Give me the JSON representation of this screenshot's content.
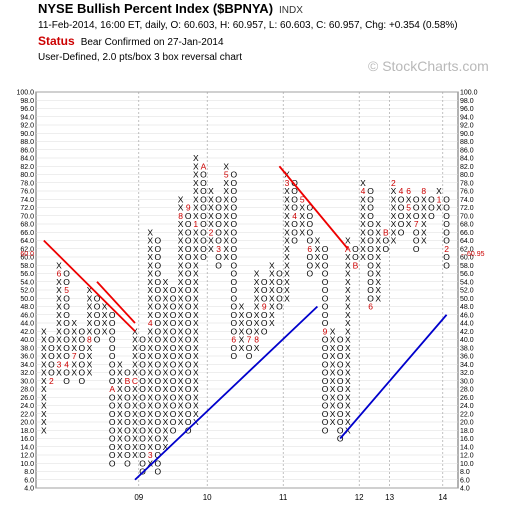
{
  "header": {
    "title": "NYSE Bullish Percent Index ($BPNYA)",
    "exchange": "INDX",
    "quote": "11-Feb-2014, 16:00 ET, daily, O: 60.603, H: 60.957, L: 60.603, C: 60.957, Chg: +0.354 (0.58%)",
    "status_label": "Status",
    "status_value": "Bear Confirmed on 27-Jan-2014",
    "chart_type": "User-Defined, 2.0 pts/box 3 box reversal chart",
    "brand": "© StockCharts.com"
  },
  "colors": {
    "x_mark": "#000000",
    "o_mark": "#000000",
    "month_marker": "#cc0000",
    "bearish_resistance": "#ee0000",
    "bullish_support": "#0000cc",
    "price_label": "#cc0000",
    "grid": "#dddddd"
  },
  "chart_data": {
    "type": "point-and-figure",
    "box_size": 2.0,
    "reversal": 3,
    "ylim": [
      4,
      100
    ],
    "y_ticks": [
      "100.0",
      "98.0",
      "96.0",
      "94.0",
      "92.0",
      "90.0",
      "88.0",
      "86.0",
      "84.0",
      "82.0",
      "80.0",
      "78.0",
      "76.0",
      "74.0",
      "72.0",
      "70.0",
      "68.0",
      "66.0",
      "64.0",
      "62.0",
      "60.0",
      "58.0",
      "56.0",
      "54.0",
      "52.0",
      "50.0",
      "48.0",
      "46.0",
      "44.0",
      "42.0",
      "40.0",
      "38.0",
      "36.0",
      "34.0",
      "32.0",
      "30.0",
      "28.0",
      "26.0",
      "24.0",
      "22.0",
      "20.0",
      "18.0",
      "16.0",
      "14.0",
      "12.0",
      "10.0",
      "8.0",
      "6.0",
      "4.0"
    ],
    "x_labels": [
      {
        "label": "09",
        "column": 13
      },
      {
        "label": "10",
        "column": 22
      },
      {
        "label": "11",
        "column": 32
      },
      {
        "label": "12",
        "column": 42
      },
      {
        "label": "13",
        "column": 46
      },
      {
        "label": "14",
        "column": 53
      }
    ],
    "current_price": 60.95,
    "current_price_label": "60.95",
    "current_price_label_left": "60.0",
    "columns": [
      {
        "type": "X",
        "low": 18,
        "high": 42
      },
      {
        "type": "O",
        "low": 30,
        "high": 40
      },
      {
        "type": "X",
        "low": 32,
        "high": 58
      },
      {
        "type": "O",
        "low": 30,
        "high": 56
      },
      {
        "type": "X",
        "low": 32,
        "high": 44
      },
      {
        "type": "O",
        "low": 30,
        "high": 42
      },
      {
        "type": "X",
        "low": 32,
        "high": 52
      },
      {
        "type": "O",
        "low": 40,
        "high": 50
      },
      {
        "type": "X",
        "low": 42,
        "high": 48
      },
      {
        "type": "O",
        "low": 10,
        "high": 46
      },
      {
        "type": "X",
        "low": 12,
        "high": 34
      },
      {
        "type": "O",
        "low": 10,
        "high": 32
      },
      {
        "type": "X",
        "low": 12,
        "high": 42
      },
      {
        "type": "O",
        "low": 8,
        "high": 40
      },
      {
        "type": "X",
        "low": 10,
        "high": 66
      },
      {
        "type": "O",
        "low": 8,
        "high": 64
      },
      {
        "type": "X",
        "low": 14,
        "high": 54
      },
      {
        "type": "O",
        "low": 18,
        "high": 52
      },
      {
        "type": "X",
        "low": 20,
        "high": 74
      },
      {
        "type": "O",
        "low": 18,
        "high": 72
      },
      {
        "type": "X",
        "low": 20,
        "high": 84
      },
      {
        "type": "O",
        "low": 60,
        "high": 82
      },
      {
        "type": "X",
        "low": 62,
        "high": 76
      },
      {
        "type": "O",
        "low": 58,
        "high": 74
      },
      {
        "type": "X",
        "low": 60,
        "high": 82
      },
      {
        "type": "O",
        "low": 36,
        "high": 80
      },
      {
        "type": "X",
        "low": 38,
        "high": 48
      },
      {
        "type": "O",
        "low": 36,
        "high": 46
      },
      {
        "type": "X",
        "low": 38,
        "high": 56
      },
      {
        "type": "O",
        "low": 42,
        "high": 54
      },
      {
        "type": "X",
        "low": 44,
        "high": 58
      },
      {
        "type": "O",
        "low": 48,
        "high": 56
      },
      {
        "type": "X",
        "low": 50,
        "high": 80
      },
      {
        "type": "O",
        "low": 64,
        "high": 78
      },
      {
        "type": "X",
        "low": 66,
        "high": 74
      },
      {
        "type": "O",
        "low": 56,
        "high": 72
      },
      {
        "type": "X",
        "low": 58,
        "high": 64
      },
      {
        "type": "O",
        "low": 18,
        "high": 62
      },
      {
        "type": "X",
        "low": 20,
        "high": 42
      },
      {
        "type": "O",
        "low": 16,
        "high": 40
      },
      {
        "type": "X",
        "low": 18,
        "high": 64
      },
      {
        "type": "O",
        "low": 58,
        "high": 62
      },
      {
        "type": "X",
        "low": 60,
        "high": 78
      },
      {
        "type": "O",
        "low": 48,
        "high": 76
      },
      {
        "type": "X",
        "low": 50,
        "high": 68
      },
      {
        "type": "O",
        "low": 62,
        "high": 66
      },
      {
        "type": "X",
        "low": 64,
        "high": 78
      },
      {
        "type": "O",
        "low": 66,
        "high": 76
      },
      {
        "type": "X",
        "low": 68,
        "high": 76
      },
      {
        "type": "O",
        "low": 62,
        "high": 74
      },
      {
        "type": "X",
        "low": 64,
        "high": 76
      },
      {
        "type": "O",
        "low": 70,
        "high": 74
      },
      {
        "type": "X",
        "low": 72,
        "high": 76
      },
      {
        "type": "O",
        "low": 58,
        "high": 74
      }
    ],
    "month_markers": [
      {
        "column": 1,
        "value": 30,
        "label": "2"
      },
      {
        "column": 2,
        "value": 34,
        "label": "3"
      },
      {
        "column": 2,
        "value": 56,
        "label": "6"
      },
      {
        "column": 3,
        "value": 34,
        "label": "4"
      },
      {
        "column": 3,
        "value": 52,
        "label": "5"
      },
      {
        "column": 4,
        "value": 36,
        "label": "7"
      },
      {
        "column": 6,
        "value": 40,
        "label": "8"
      },
      {
        "column": 9,
        "value": 28,
        "label": "A"
      },
      {
        "column": 11,
        "value": 30,
        "label": "B"
      },
      {
        "column": 12,
        "value": 30,
        "label": "C"
      },
      {
        "column": 13,
        "value": 44,
        "label": "2"
      },
      {
        "column": 14,
        "value": 12,
        "label": "3"
      },
      {
        "column": 14,
        "value": 44,
        "label": "4"
      },
      {
        "column": 16,
        "value": 70,
        "label": "6"
      },
      {
        "column": 17,
        "value": 54,
        "label": "7"
      },
      {
        "column": 17,
        "value": 64,
        "label": "5"
      },
      {
        "column": 18,
        "value": 70,
        "label": "8"
      },
      {
        "column": 19,
        "value": 72,
        "label": "9"
      },
      {
        "column": 20,
        "value": 68,
        "label": "1"
      },
      {
        "column": 21,
        "value": 82,
        "label": "A"
      },
      {
        "column": 22,
        "value": 66,
        "label": "2"
      },
      {
        "column": 23,
        "value": 62,
        "label": "3"
      },
      {
        "column": 23,
        "value": 80,
        "label": "4"
      },
      {
        "column": 24,
        "value": 80,
        "label": "5"
      },
      {
        "column": 25,
        "value": 40,
        "label": "6"
      },
      {
        "column": 27,
        "value": 40,
        "label": "7"
      },
      {
        "column": 28,
        "value": 40,
        "label": "8"
      },
      {
        "column": 29,
        "value": 48,
        "label": "9"
      },
      {
        "column": 30,
        "value": 62,
        "label": "A"
      },
      {
        "column": 31,
        "value": 72,
        "label": "B"
      },
      {
        "column": 31,
        "value": 76,
        "label": "C"
      },
      {
        "column": 32,
        "value": 78,
        "label": "3"
      },
      {
        "column": 33,
        "value": 70,
        "label": "4"
      },
      {
        "column": 34,
        "value": 74,
        "label": "5"
      },
      {
        "column": 35,
        "value": 62,
        "label": "6"
      },
      {
        "column": 36,
        "value": 56,
        "label": "8"
      },
      {
        "column": 37,
        "value": 42,
        "label": "9"
      },
      {
        "column": 40,
        "value": 62,
        "label": "A"
      },
      {
        "column": 41,
        "value": 58,
        "label": "B"
      },
      {
        "column": 42,
        "value": 54,
        "label": "1"
      },
      {
        "column": 42,
        "value": 76,
        "label": "4"
      },
      {
        "column": 43,
        "value": 48,
        "label": "6"
      },
      {
        "column": 44,
        "value": 48,
        "label": "7"
      },
      {
        "column": 45,
        "value": 66,
        "label": "B"
      },
      {
        "column": 46,
        "value": 78,
        "label": "2"
      },
      {
        "column": 47,
        "value": 76,
        "label": "4"
      },
      {
        "column": 48,
        "value": 72,
        "label": "5"
      },
      {
        "column": 48,
        "value": 76,
        "label": "6"
      },
      {
        "column": 49,
        "value": 68,
        "label": "7"
      },
      {
        "column": 50,
        "value": 76,
        "label": "8"
      },
      {
        "column": 52,
        "value": 74,
        "label": "1"
      },
      {
        "column": 53,
        "value": 62,
        "label": "2"
      }
    ],
    "trend_lines": [
      {
        "kind": "bearish_resistance",
        "from": {
          "column": 0,
          "value": 64
        },
        "to": {
          "column": 12,
          "value": 42
        }
      },
      {
        "kind": "bearish_resistance",
        "from": {
          "column": 7,
          "value": 54
        },
        "to": {
          "column": 12,
          "value": 44
        }
      },
      {
        "kind": "bearish_resistance",
        "from": {
          "column": 31,
          "value": 82
        },
        "to": {
          "column": 40,
          "value": 62
        }
      },
      {
        "kind": "bullish_support",
        "from": {
          "column": 12,
          "value": 6
        },
        "to": {
          "column": 36,
          "value": 48
        }
      },
      {
        "kind": "bullish_support",
        "from": {
          "column": 39,
          "value": 16
        },
        "to": {
          "column": 53,
          "value": 46
        }
      }
    ]
  }
}
